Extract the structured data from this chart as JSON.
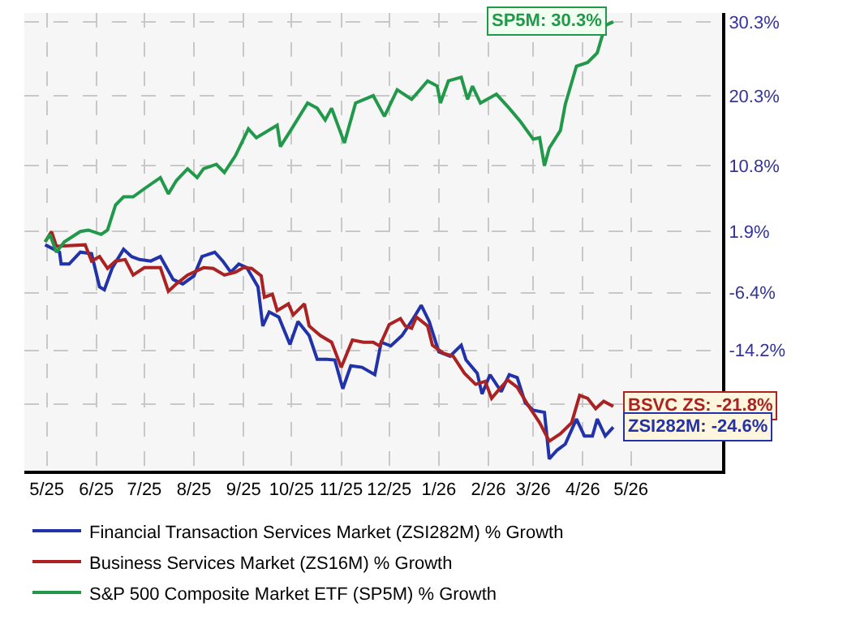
{
  "chart_data": {
    "type": "line",
    "legend": "bottom",
    "grid": true,
    "line_style": "solid",
    "marker": "none",
    "xlim": [
      "2025-04-17",
      "2026-06-27"
    ],
    "xticks": [
      {
        "value": "2025-05-01",
        "label": "5/25"
      },
      {
        "value": "2025-06-01",
        "label": "6/25"
      },
      {
        "value": "2025-07-01",
        "label": "7/25"
      },
      {
        "value": "2025-08-01",
        "label": "8/25"
      },
      {
        "value": "2025-09-01",
        "label": "9/25"
      },
      {
        "value": "2025-10-01",
        "label": "10/25"
      },
      {
        "value": "2025-11-01",
        "label": "11/25"
      },
      {
        "value": "2025-12-01",
        "label": "12/25"
      },
      {
        "value": "2026-01-01",
        "label": "1/26"
      },
      {
        "value": "2026-02-01",
        "label": "2/26"
      },
      {
        "value": "2026-03-01",
        "label": "3/26"
      },
      {
        "value": "2026-04-01",
        "label": "4/26"
      },
      {
        "value": "2026-05-01",
        "label": "5/26"
      }
    ],
    "ylim": [
      -30.5,
      31.5
    ],
    "yticks": [
      {
        "value": 30.3,
        "label": "30.3%"
      },
      {
        "value": 20.3,
        "label": "20.3%"
      },
      {
        "value": 10.8,
        "label": "10.8%"
      },
      {
        "value": 1.9,
        "label": "1.9%"
      },
      {
        "value": -6.4,
        "label": "-6.4%"
      },
      {
        "value": -14.2,
        "label": "-14.2%"
      },
      {
        "value": -21.5,
        "label": null
      }
    ],
    "series": [
      {
        "name": "Financial Transaction Services Market (ZSI282M) % Growth",
        "color": "#2233aa",
        "x": [
          "2025-04-30",
          "2025-05-09",
          "2025-05-10",
          "2025-05-15",
          "2025-05-22",
          "2025-05-29",
          "2025-06-03",
          "2025-06-06",
          "2025-06-11",
          "2025-06-18",
          "2025-06-23",
          "2025-06-28",
          "2025-07-05",
          "2025-07-11",
          "2025-07-19",
          "2025-07-25",
          "2025-08-01",
          "2025-08-06",
          "2025-08-14",
          "2025-08-19",
          "2025-08-24",
          "2025-08-29",
          "2025-09-03",
          "2025-09-10",
          "2025-09-13",
          "2025-09-17",
          "2025-09-23",
          "2025-09-30",
          "2025-10-05",
          "2025-10-12",
          "2025-10-17",
          "2025-10-23",
          "2025-10-28",
          "2025-11-02",
          "2025-11-07",
          "2025-11-14",
          "2025-11-22",
          "2025-11-26",
          "2025-12-02",
          "2025-12-09",
          "2025-12-16",
          "2025-12-21",
          "2025-12-26",
          "2026-01-01",
          "2026-01-08",
          "2026-01-15",
          "2026-01-18",
          "2026-01-25",
          "2026-01-28",
          "2026-02-02",
          "2026-02-09",
          "2026-02-14",
          "2026-02-19",
          "2026-02-24",
          "2026-03-01",
          "2026-03-08",
          "2026-03-11",
          "2026-03-16",
          "2026-03-21",
          "2026-03-28",
          "2026-04-02",
          "2026-04-07",
          "2026-04-10",
          "2026-04-15",
          "2026-04-20"
        ],
        "values": [
          0.1,
          -0.9,
          -2.5,
          -2.5,
          -0.9,
          -1.1,
          -5.6,
          -6.0,
          -3.0,
          -0.5,
          -1.5,
          -1.9,
          -2.1,
          -1.5,
          -4.6,
          -5.2,
          -4.1,
          -1.5,
          -0.9,
          -2.1,
          -3.6,
          -2.5,
          -3.0,
          -5.6,
          -10.9,
          -9.0,
          -9.7,
          -13.4,
          -10.3,
          -12.2,
          -15.4,
          -15.4,
          -15.5,
          -19.4,
          -16.3,
          -16.5,
          -17.5,
          -13.1,
          -13.6,
          -12.2,
          -9.9,
          -8.1,
          -10.3,
          -14.4,
          -15.0,
          -13.5,
          -15.5,
          -17.3,
          -20.1,
          -17.5,
          -19.8,
          -17.5,
          -17.9,
          -21.3,
          -22.3,
          -22.6,
          -28.9,
          -27.7,
          -26.9,
          -23.5,
          -25.8,
          -25.8,
          -23.5,
          -25.8,
          -24.6
        ]
      },
      {
        "name": "Business Services Market (ZS16M) % Growth",
        "color": "#aa2222",
        "x": [
          "2025-04-30",
          "2025-05-04",
          "2025-05-07",
          "2025-05-25",
          "2025-05-29",
          "2025-06-03",
          "2025-06-08",
          "2025-06-13",
          "2025-06-19",
          "2025-06-24",
          "2025-07-01",
          "2025-07-11",
          "2025-07-16",
          "2025-07-21",
          "2025-07-28",
          "2025-08-07",
          "2025-08-13",
          "2025-08-20",
          "2025-08-27",
          "2025-09-01",
          "2025-09-06",
          "2025-09-12",
          "2025-09-14",
          "2025-09-19",
          "2025-09-22",
          "2025-09-29",
          "2025-10-02",
          "2025-10-09",
          "2025-10-12",
          "2025-10-19",
          "2025-10-26",
          "2025-11-01",
          "2025-11-08",
          "2025-11-15",
          "2025-11-21",
          "2025-11-25",
          "2025-12-01",
          "2025-12-08",
          "2025-12-11",
          "2025-12-15",
          "2025-12-18",
          "2025-12-25",
          "2025-12-28",
          "2026-01-04",
          "2026-01-10",
          "2026-01-17",
          "2026-01-24",
          "2026-01-30",
          "2026-02-03",
          "2026-02-08",
          "2026-02-13",
          "2026-02-19",
          "2026-02-26",
          "2026-03-05",
          "2026-03-11",
          "2026-03-18",
          "2026-03-25",
          "2026-03-30",
          "2026-04-04",
          "2026-04-09",
          "2026-04-14",
          "2026-04-20"
        ],
        "values": [
          0.5,
          1.9,
          -0.1,
          0.1,
          -2.1,
          -1.5,
          -3.1,
          -2.1,
          -1.9,
          -4.0,
          -3.0,
          -3.0,
          -6.2,
          -5.2,
          -4.0,
          -3.0,
          -3.1,
          -4.0,
          -3.6,
          -3.0,
          -3.1,
          -4.1,
          -7.0,
          -6.6,
          -8.8,
          -7.9,
          -9.4,
          -7.9,
          -10.9,
          -12.2,
          -13.1,
          -16.5,
          -12.8,
          -13.1,
          -13.1,
          -13.6,
          -10.7,
          -9.9,
          -10.9,
          -11.2,
          -9.7,
          -10.9,
          -13.5,
          -14.6,
          -15.0,
          -17.3,
          -18.8,
          -18.4,
          -20.7,
          -19.4,
          -18.2,
          -19.2,
          -21.7,
          -24.0,
          -26.5,
          -25.5,
          -24.0,
          -20.3,
          -20.7,
          -22.1,
          -21.1,
          -21.8
        ]
      },
      {
        "name": "S&P 500 Composite Market ETF (SP5M) % Growth",
        "color": "#22994a",
        "x": [
          "2025-04-30",
          "2025-05-03",
          "2025-05-07",
          "2025-05-12",
          "2025-05-22",
          "2025-05-27",
          "2025-06-04",
          "2025-06-08",
          "2025-06-13",
          "2025-06-18",
          "2025-06-24",
          "2025-07-01",
          "2025-07-11",
          "2025-07-16",
          "2025-07-21",
          "2025-07-28",
          "2025-08-03",
          "2025-08-07",
          "2025-08-15",
          "2025-08-20",
          "2025-08-27",
          "2025-09-04",
          "2025-09-09",
          "2025-09-22",
          "2025-09-24",
          "2025-10-01",
          "2025-10-11",
          "2025-10-17",
          "2025-10-22",
          "2025-10-26",
          "2025-11-03",
          "2025-11-10",
          "2025-11-21",
          "2025-11-28",
          "2025-12-06",
          "2025-12-15",
          "2025-12-25",
          "2025-12-31",
          "2026-01-02",
          "2026-01-07",
          "2026-01-15",
          "2026-01-19",
          "2026-01-22",
          "2026-01-27",
          "2026-02-06",
          "2026-02-14",
          "2026-02-21",
          "2026-03-01",
          "2026-03-05",
          "2026-03-08",
          "2026-03-11",
          "2026-03-18",
          "2026-03-21",
          "2026-03-28",
          "2026-04-04",
          "2026-04-10",
          "2026-04-15",
          "2026-04-20"
        ],
        "values": [
          0.5,
          1.5,
          -0.9,
          0.5,
          1.9,
          2.1,
          1.5,
          2.1,
          5.5,
          6.6,
          6.6,
          7.7,
          9.2,
          7.0,
          8.8,
          10.4,
          9.2,
          10.4,
          11.0,
          9.9,
          12.2,
          15.8,
          14.6,
          16.3,
          13.4,
          15.8,
          19.3,
          18.6,
          17.0,
          18.6,
          13.9,
          19.3,
          20.3,
          17.5,
          21.1,
          19.8,
          22.3,
          21.6,
          19.3,
          22.3,
          22.8,
          19.8,
          21.6,
          19.3,
          20.5,
          18.6,
          16.8,
          14.4,
          14.6,
          10.8,
          13.2,
          15.6,
          19.1,
          24.3,
          24.8,
          26.1,
          29.8,
          30.3
        ]
      }
    ],
    "annotations": [
      {
        "text": "SP5M: 30.3%",
        "x": "2026-04-20",
        "y": 30.3
      },
      {
        "text": "BSVC ZS: -21.8%",
        "x": "2026-04-20",
        "y": -21.8
      },
      {
        "text": "ZSI282M: -24.6%",
        "x": "2026-04-20",
        "y": -24.6
      }
    ]
  }
}
